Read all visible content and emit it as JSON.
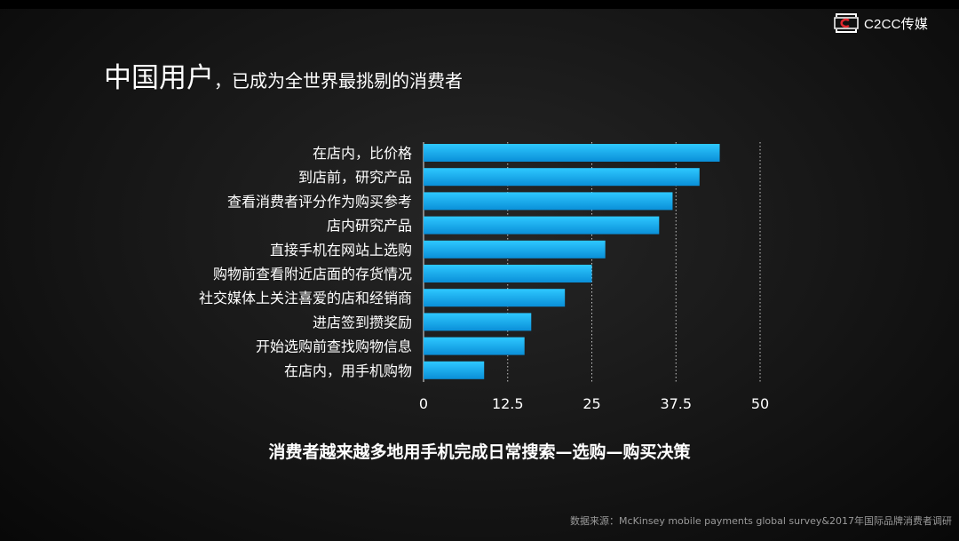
{
  "logo": {
    "text": "C2CC传媒"
  },
  "title": {
    "main": "中国用户",
    "sub": "，已成为全世界最挑剔的消费者"
  },
  "caption": "消费者越来越多地用手机完成日常搜索—选购—购买决策",
  "source": "数据来源：McKinsey mobile payments global survey&2017年国际品牌消费者调研",
  "colors": {
    "bar_top": "#2ec8ff",
    "bar_bottom": "#0a8fd8",
    "grid": "#c8c8c8"
  },
  "chart_data": {
    "type": "bar",
    "orientation": "horizontal",
    "categories": [
      "在店内，比价格",
      "到店前，研究产品",
      "查看消费者评分作为购买参考",
      "店内研究产品",
      "直接手机在网站上选购",
      "购物前查看附近店面的存货情况",
      "社交媒体上关注喜爱的店和经销商",
      "进店签到攒奖励",
      "开始选购前查找购物信息",
      "在店内，用手机购物"
    ],
    "values": [
      44,
      41,
      37,
      35,
      27,
      25,
      21,
      16,
      15,
      9
    ],
    "xlim": [
      0,
      50
    ],
    "xticks": [
      "0",
      "12.5",
      "25",
      "37.5",
      "50"
    ],
    "grid": "vertical dotted"
  }
}
